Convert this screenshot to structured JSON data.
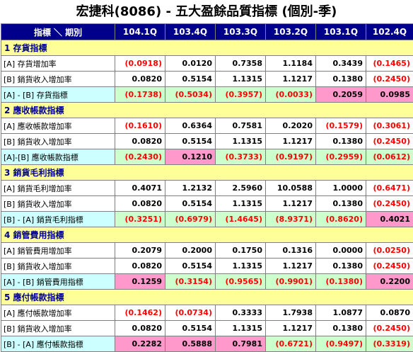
{
  "title": "宏捷科(8086) -  五大盈餘品質指標 (個別-季)",
  "header": {
    "label": "指標 ＼ 期別",
    "periods": [
      "104.1Q",
      "103.4Q",
      "103.3Q",
      "103.2Q",
      "103.1Q",
      "102.4Q"
    ]
  },
  "colors": {
    "header_bg": "#00008b",
    "section_bg": "#ffff99",
    "indicator_label_bg": "#ccffff",
    "negative_text": "#ff0000",
    "cell_green": "#ccffcc",
    "cell_pink": "#ff99cc"
  },
  "sections": [
    {
      "title": "1 存貨指標",
      "rows": [
        {
          "label": "[A] 存貨增加率",
          "values": [
            "(0.0918)",
            "0.0120",
            "0.7358",
            "1.1184",
            "0.3439",
            "(0.1465)"
          ]
        },
        {
          "label": "[B] 銷貨收入增加率",
          "values": [
            "0.0820",
            "0.5154",
            "1.1315",
            "1.1217",
            "0.1380",
            "(0.2450)"
          ]
        },
        {
          "label": "[A] - [B] 存貨指標",
          "values": [
            "(0.1738)",
            "(0.5034)",
            "(0.3957)",
            "(0.0033)",
            "0.2059",
            "0.0985"
          ],
          "bg": [
            "g",
            "g",
            "g",
            "g",
            "p",
            "p"
          ]
        }
      ]
    },
    {
      "title": "2 應收帳款指標",
      "rows": [
        {
          "label": "[A] 應收帳款增加率",
          "values": [
            "(0.1610)",
            "0.6364",
            "0.7581",
            "0.2020",
            "(0.1579)",
            "(0.3061)"
          ]
        },
        {
          "label": "[B] 銷貨收入增加率",
          "values": [
            "0.0820",
            "0.5154",
            "1.1315",
            "1.1217",
            "0.1380",
            "(0.2450)"
          ]
        },
        {
          "label": "[A]-[B] 應收帳款指標",
          "values": [
            "(0.2430)",
            "0.1210",
            "(0.3733)",
            "(0.9197)",
            "(0.2959)",
            "(0.0612)"
          ],
          "bg": [
            "g",
            "p",
            "g",
            "g",
            "g",
            "g"
          ]
        }
      ]
    },
    {
      "title": "3 銷貨毛利指標",
      "rows": [
        {
          "label": "[A] 銷貨毛利增加率",
          "values": [
            "0.4071",
            "1.2132",
            "2.5960",
            "10.0588",
            "1.0000",
            "(0.6471)"
          ]
        },
        {
          "label": "[B] 銷貨收入增加率",
          "values": [
            "0.0820",
            "0.5154",
            "1.1315",
            "1.1217",
            "0.1380",
            "(0.2450)"
          ]
        },
        {
          "label": "[B] - [A] 銷貨毛利指標",
          "values": [
            "(0.3251)",
            "(0.6979)",
            "(1.4645)",
            "(8.9371)",
            "(0.8620)",
            "0.4021"
          ],
          "bg": [
            "g",
            "g",
            "g",
            "g",
            "g",
            "p"
          ]
        }
      ]
    },
    {
      "title": "4 銷管費用指標",
      "rows": [
        {
          "label": "[A] 銷管費用增加率",
          "values": [
            "0.2079",
            "0.2000",
            "0.1750",
            "0.1316",
            "0.0000",
            "(0.0250)"
          ]
        },
        {
          "label": "[B] 銷貨收入增加率",
          "values": [
            "0.0820",
            "0.5154",
            "1.1315",
            "1.1217",
            "0.1380",
            "(0.2450)"
          ]
        },
        {
          "label": "[A] - [B] 銷管費用指標",
          "values": [
            "0.1259",
            "(0.3154)",
            "(0.9565)",
            "(0.9901)",
            "(0.1380)",
            "0.2200"
          ],
          "bg": [
            "p",
            "g",
            "g",
            "g",
            "g",
            "p"
          ]
        }
      ]
    },
    {
      "title": "5 應付帳款指標",
      "rows": [
        {
          "label": "[A] 應付帳款增加率",
          "values": [
            "(0.1462)",
            "(0.0734)",
            "0.3333",
            "1.7938",
            "1.0877",
            "0.0870"
          ]
        },
        {
          "label": "[B] 銷貨收入增加率",
          "values": [
            "0.0820",
            "0.5154",
            "1.1315",
            "1.1217",
            "0.1380",
            "(0.2450)"
          ]
        },
        {
          "label": "[B] - [A] 應付帳款指標",
          "values": [
            "0.2282",
            "0.5888",
            "0.7981",
            "(0.6721)",
            "(0.9497)",
            "(0.3319)"
          ],
          "bg": [
            "p",
            "p",
            "p",
            "g",
            "g",
            "g"
          ]
        }
      ]
    }
  ]
}
